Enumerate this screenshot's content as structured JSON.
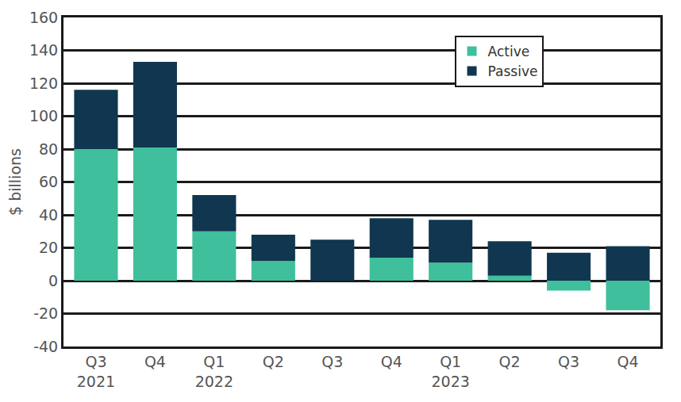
{
  "chart_data": {
    "type": "bar",
    "stacked": true,
    "y_label": "$ billions",
    "categories": [
      "Q3 2021",
      "Q4",
      "Q1 2022",
      "Q2",
      "Q3",
      "Q4",
      "Q1 2023",
      "Q2",
      "Q3",
      "Q4"
    ],
    "series": [
      {
        "name": "Active",
        "color": "#3fbf9c",
        "values": [
          80,
          81,
          30,
          12,
          0,
          14,
          11,
          3,
          -6,
          -18
        ]
      },
      {
        "name": "Passive",
        "color": "#10374f",
        "values": [
          36,
          52,
          22,
          16,
          25,
          24,
          26,
          21,
          17,
          21
        ]
      }
    ],
    "ylim": [
      -40,
      160
    ],
    "yticks": [
      -40,
      -20,
      0,
      20,
      40,
      60,
      80,
      100,
      120,
      140,
      160
    ],
    "grid": true,
    "legend": "upper right"
  }
}
